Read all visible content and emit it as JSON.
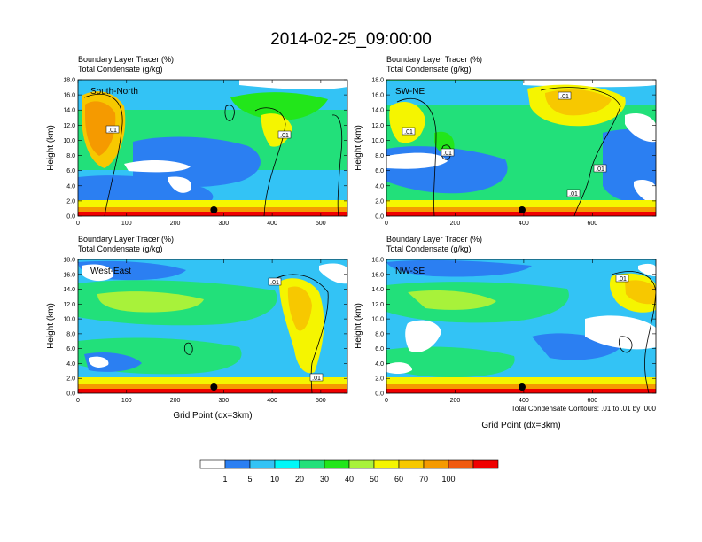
{
  "figure": {
    "title": "2014-02-25_09:00:00",
    "contour_note": "Total Condensate Contours: .01 to .01 by .000",
    "colorbar": {
      "colors": [
        "#ffffff",
        "#2b7ff2",
        "#33c3f5",
        "#00f8f8",
        "#22e07a",
        "#22e61a",
        "#a8f23a",
        "#f5f500",
        "#f7c800",
        "#f59a00",
        "#f05a10",
        "#f00000"
      ],
      "labels": [
        "1",
        "5",
        "10",
        "20",
        "30",
        "40",
        "50",
        "60",
        "70",
        "100"
      ]
    }
  },
  "chart_data": [
    {
      "type": "heatmap",
      "panel_label": "South-North",
      "header_line1": "Boundary Layer Tracer   (%)",
      "header_line2": "Total Condensate   (g/kg)",
      "ylabel": "Height (km)",
      "xlabel": "",
      "ylim": [
        0,
        18
      ],
      "yticks": [
        "0.0",
        "2.0",
        "4.0",
        "6.0",
        "8.0",
        "10.0",
        "12.0",
        "14.0",
        "16.0",
        "18.0"
      ],
      "xlim": [
        0,
        555
      ],
      "xticks": [
        "0",
        "100",
        "200",
        "300",
        "400",
        "500"
      ],
      "marker_x": 280,
      "contour_label": ".01"
    },
    {
      "type": "heatmap",
      "panel_label": "SW-NE",
      "header_line1": "Boundary Layer Tracer   (%)",
      "header_line2": "Total Condensate   (g/kg)",
      "ylabel": "Height (km)",
      "xlabel": "",
      "ylim": [
        0,
        18
      ],
      "yticks": [
        "0.0",
        "2.0",
        "4.0",
        "6.0",
        "8.0",
        "10.0",
        "12.0",
        "14.0",
        "16.0",
        "18.0"
      ],
      "xlim": [
        0,
        785
      ],
      "xticks": [
        "0",
        "200",
        "400",
        "600"
      ],
      "marker_x": 395,
      "contour_label": ".01"
    },
    {
      "type": "heatmap",
      "panel_label": "West-East",
      "header_line1": "Boundary Layer Tracer   (%)",
      "header_line2": "Total Condensate   (g/kg)",
      "ylabel": "Height (km)",
      "xlabel": "Grid Point (dx=3km)",
      "ylim": [
        0,
        18
      ],
      "yticks": [
        "0.0",
        "2.0",
        "4.0",
        "6.0",
        "8.0",
        "10.0",
        "12.0",
        "14.0",
        "16.0",
        "18.0"
      ],
      "xlim": [
        0,
        555
      ],
      "xticks": [
        "0",
        "100",
        "200",
        "300",
        "400",
        "500"
      ],
      "marker_x": 280,
      "contour_label": ".01"
    },
    {
      "type": "heatmap",
      "panel_label": "NW-SE",
      "header_line1": "Boundary Layer Tracer   (%)",
      "header_line2": "Total Condensate   (g/kg)",
      "ylabel": "Height (km)",
      "xlabel": "Grid Point (dx=3km)",
      "ylim": [
        0,
        18
      ],
      "yticks": [
        "0.0",
        "2.0",
        "4.0",
        "6.0",
        "8.0",
        "10.0",
        "12.0",
        "14.0",
        "16.0",
        "18.0"
      ],
      "xlim": [
        0,
        785
      ],
      "xticks": [
        "0",
        "200",
        "400",
        "600"
      ],
      "marker_x": 395,
      "contour_label": ".01"
    }
  ]
}
